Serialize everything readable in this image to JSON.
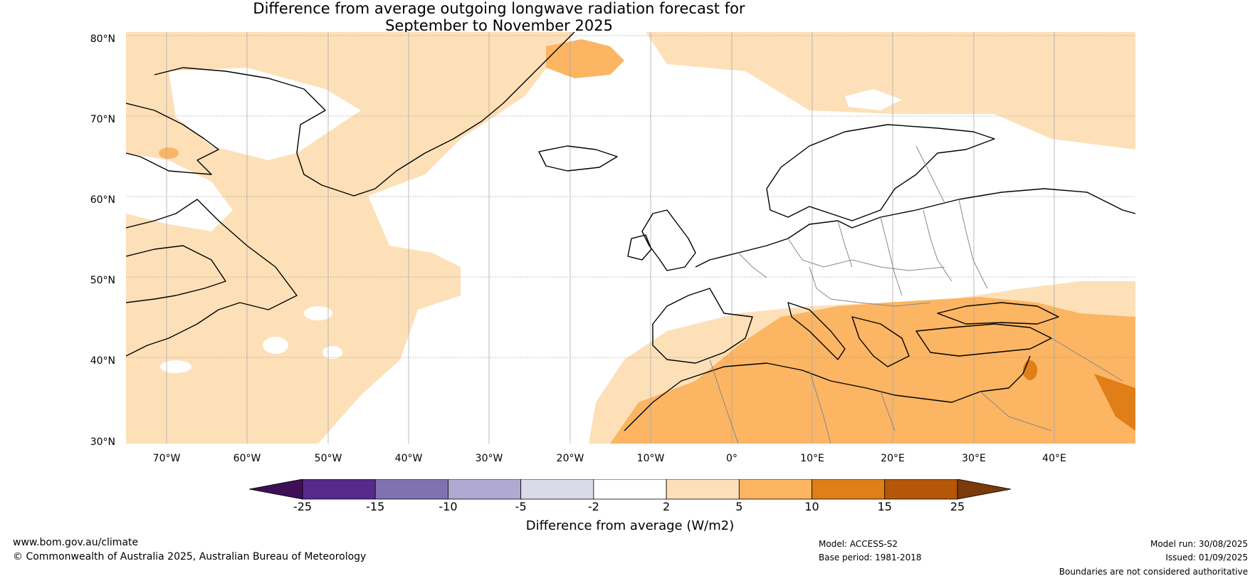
{
  "title": {
    "line1": "Difference from average outgoing longwave radiation forecast for",
    "line2": "September to November 2025"
  },
  "map": {
    "latitude_labels": [
      "80°N",
      "70°N",
      "60°N",
      "50°N",
      "40°N",
      "30°N"
    ],
    "longitude_labels": [
      "70°W",
      "60°W",
      "50°W",
      "40°W",
      "30°W",
      "20°W",
      "10°W",
      "0°",
      "10°E",
      "20°E",
      "30°E",
      "40°E"
    ],
    "colors": {
      "land_outline": "#000000",
      "border_outline": "#888888",
      "gridline": "#999999"
    }
  },
  "colorbar": {
    "ticks": [
      "-25",
      "-15",
      "-10",
      "-5",
      "-2",
      "2",
      "5",
      "10",
      "15",
      "25"
    ],
    "colors": [
      "#3f0f56",
      "#552a8a",
      "#8072b0",
      "#b0a9d2",
      "#dadae9",
      "#ffffff",
      "#fde0b8",
      "#fbb563",
      "#e07e17",
      "#b45709",
      "#7a3a0b"
    ],
    "label": "Difference from average (W/m2)"
  },
  "footer": {
    "website": "www.bom.gov.au/climate",
    "copyright": "© Commonwealth of Australia 2025, Australian Bureau of Meteorology",
    "model": "Model: ACCESS-S2",
    "base_period": "Base period: 1981-2018",
    "model_run": "Model run: 30/08/2025",
    "issued": "Issued: 01/09/2025",
    "disclaimer": "Boundaries are not considered authoritative"
  }
}
